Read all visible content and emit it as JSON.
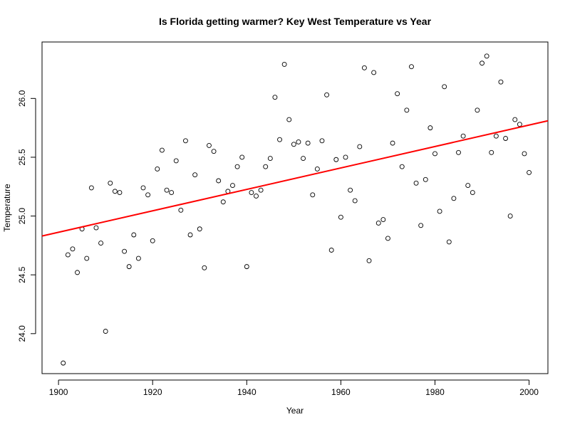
{
  "chart_data": {
    "type": "scatter",
    "title": "Is Florida getting warmer? Key West Temperature vs Year",
    "xlabel": "Year",
    "ylabel": "Temperature",
    "xlim": [
      1896.5,
      2004.0
    ],
    "ylim": [
      23.66,
      26.48
    ],
    "x_ticks": [
      1900,
      1920,
      1940,
      1960,
      1980,
      2000
    ],
    "x_tick_labels": [
      "1900",
      "1920",
      "1940",
      "1960",
      "1980",
      "2000"
    ],
    "y_ticks": [
      24.0,
      24.5,
      25.0,
      25.5,
      26.0
    ],
    "y_tick_labels": [
      "24.0",
      "24.5",
      "25.0",
      "25.5",
      "26.0"
    ],
    "grid": false,
    "legend": "none",
    "marker": "open-circle",
    "point_color": "#000000",
    "fit_line": {
      "color": "#ff0000",
      "x": [
        1896.5,
        2004.0
      ],
      "y": [
        24.83,
        25.81
      ]
    },
    "x": [
      1901,
      1902,
      1903,
      1904,
      1905,
      1906,
      1907,
      1908,
      1909,
      1910,
      1911,
      1912,
      1913,
      1914,
      1915,
      1916,
      1917,
      1918,
      1919,
      1920,
      1921,
      1922,
      1923,
      1924,
      1925,
      1926,
      1927,
      1928,
      1929,
      1930,
      1931,
      1932,
      1933,
      1934,
      1935,
      1936,
      1937,
      1938,
      1939,
      1940,
      1941,
      1942,
      1943,
      1944,
      1945,
      1946,
      1947,
      1948,
      1949,
      1950,
      1951,
      1952,
      1953,
      1954,
      1955,
      1956,
      1957,
      1958,
      1959,
      1960,
      1961,
      1962,
      1963,
      1964,
      1965,
      1966,
      1967,
      1968,
      1969,
      1970,
      1971,
      1972,
      1973,
      1974,
      1975,
      1976,
      1977,
      1978,
      1979,
      1980,
      1981,
      1982,
      1983,
      1984,
      1985,
      1986,
      1987,
      1988,
      1989,
      1990,
      1991,
      1992,
      1993,
      1994,
      1995,
      1996,
      1997,
      1998,
      1999,
      2000
    ],
    "y": [
      23.75,
      24.67,
      24.72,
      24.52,
      24.89,
      24.64,
      25.24,
      24.9,
      24.77,
      24.02,
      25.28,
      25.21,
      25.2,
      24.7,
      24.57,
      24.84,
      24.64,
      25.24,
      25.18,
      24.79,
      25.4,
      25.56,
      25.22,
      25.2,
      25.47,
      25.05,
      25.64,
      24.84,
      25.35,
      24.89,
      24.56,
      25.6,
      25.55,
      25.3,
      25.12,
      25.21,
      25.26,
      25.42,
      25.5,
      24.57,
      25.2,
      25.17,
      25.22,
      25.42,
      25.49,
      26.01,
      25.65,
      26.29,
      25.82,
      25.61,
      25.63,
      25.49,
      25.62,
      25.18,
      25.4,
      25.64,
      26.03,
      24.71,
      25.48,
      24.99,
      25.5,
      25.22,
      25.13,
      25.59,
      26.26,
      24.62,
      26.22,
      24.94,
      24.97,
      24.81,
      25.62,
      26.04,
      25.42,
      25.9,
      26.27,
      25.28,
      24.92,
      25.31,
      25.75,
      25.53,
      25.04,
      26.1,
      24.78,
      25.15,
      25.54,
      25.68,
      25.26,
      25.2,
      25.9,
      26.3,
      26.36,
      25.54,
      25.68,
      26.14,
      25.66,
      25.0,
      25.82,
      25.78,
      25.53,
      25.37
    ]
  }
}
